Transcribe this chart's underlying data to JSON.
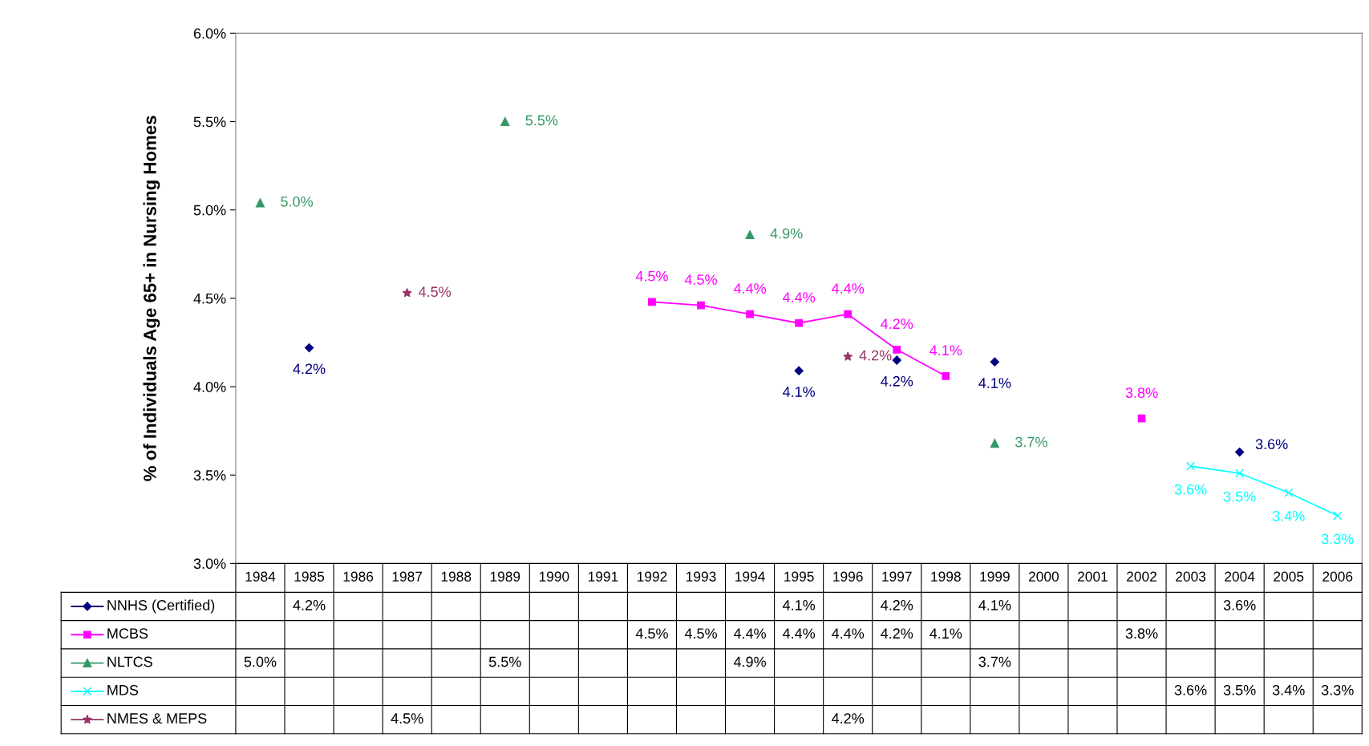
{
  "chart_data": {
    "type": "line",
    "ylabel": "% of Individuals Age 65+ in Nursing Homes",
    "categories": [
      "1984",
      "1985",
      "1986",
      "1987",
      "1988",
      "1989",
      "1990",
      "1991",
      "1992",
      "1993",
      "1994",
      "1995",
      "1996",
      "1997",
      "1998",
      "1999",
      "2000",
      "2001",
      "2002",
      "2003",
      "2004",
      "2005",
      "2006"
    ],
    "ylim": [
      3.0,
      6.0
    ],
    "yticks": [
      {
        "value": 3.0,
        "label": "3.0%"
      },
      {
        "value": 3.5,
        "label": "3.5%"
      },
      {
        "value": 4.0,
        "label": "4.0%"
      },
      {
        "value": 4.5,
        "label": "4.5%"
      },
      {
        "value": 5.0,
        "label": "5.0%"
      },
      {
        "value": 5.5,
        "label": "5.5%"
      },
      {
        "value": 6.0,
        "label": "6.0%"
      }
    ],
    "grid": false,
    "legend": "bottom",
    "series": [
      {
        "name": "NNHS (Certified)",
        "type": "scatter",
        "marker": "diamond",
        "color": "#000080",
        "values": [
          null,
          4.22,
          null,
          null,
          null,
          null,
          null,
          null,
          null,
          null,
          null,
          4.09,
          null,
          4.15,
          null,
          4.14,
          null,
          null,
          null,
          null,
          3.63,
          null,
          null
        ],
        "value_labels": [
          null,
          "4.2%",
          null,
          null,
          null,
          null,
          null,
          null,
          null,
          null,
          null,
          "4.1%",
          null,
          "4.2%",
          null,
          "4.1%",
          null,
          null,
          null,
          null,
          "3.6%",
          null,
          null
        ]
      },
      {
        "name": "MCBS",
        "marker": "square",
        "color": "#ff00ff",
        "values": [
          null,
          null,
          null,
          null,
          null,
          null,
          null,
          null,
          4.48,
          4.46,
          4.41,
          4.36,
          4.41,
          4.21,
          4.06,
          null,
          null,
          null,
          3.82,
          null,
          null,
          null,
          null
        ],
        "value_labels": [
          null,
          null,
          null,
          null,
          null,
          null,
          null,
          null,
          "4.5%",
          "4.5%",
          "4.4%",
          "4.4%",
          "4.4%",
          "4.2%",
          "4.1%",
          null,
          null,
          null,
          "3.8%",
          null,
          null,
          null,
          null
        ]
      },
      {
        "name": "NLTCS",
        "type": "scatter",
        "marker": "triangle",
        "color": "#339966",
        "values": [
          5.04,
          null,
          null,
          null,
          null,
          5.5,
          null,
          null,
          null,
          null,
          4.86,
          null,
          null,
          null,
          null,
          3.68,
          null,
          null,
          null,
          null,
          null,
          null,
          null
        ],
        "value_labels": [
          "5.0%",
          null,
          null,
          null,
          null,
          "5.5%",
          null,
          null,
          null,
          null,
          "4.9%",
          null,
          null,
          null,
          null,
          "3.7%",
          null,
          null,
          null,
          null,
          null,
          null,
          null
        ]
      },
      {
        "name": "MDS",
        "marker": "cross",
        "color": "#00ffff",
        "values": [
          null,
          null,
          null,
          null,
          null,
          null,
          null,
          null,
          null,
          null,
          null,
          null,
          null,
          null,
          null,
          null,
          null,
          null,
          null,
          3.55,
          3.51,
          3.4,
          3.27
        ],
        "value_labels": [
          null,
          null,
          null,
          null,
          null,
          null,
          null,
          null,
          null,
          null,
          null,
          null,
          null,
          null,
          null,
          null,
          null,
          null,
          null,
          "3.6%",
          "3.5%",
          "3.4%",
          "3.3%"
        ]
      },
      {
        "name": "NMES & MEPS",
        "type": "scatter",
        "marker": "star",
        "color": "#993366",
        "values": [
          null,
          null,
          null,
          4.53,
          null,
          null,
          null,
          null,
          null,
          null,
          null,
          null,
          4.17,
          null,
          null,
          null,
          null,
          null,
          null,
          null,
          null,
          null,
          null
        ],
        "value_labels": [
          null,
          null,
          null,
          "4.5%",
          null,
          null,
          null,
          null,
          null,
          null,
          null,
          null,
          "4.2%",
          null,
          null,
          null,
          null,
          null,
          null,
          null,
          null,
          null,
          null
        ]
      }
    ]
  }
}
